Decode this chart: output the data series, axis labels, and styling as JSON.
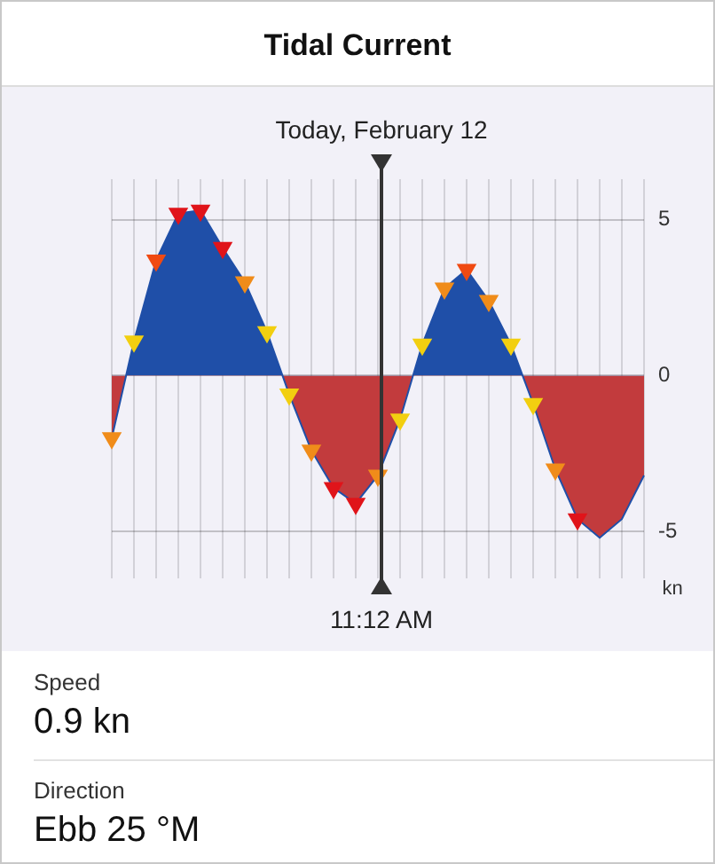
{
  "chart_data": {
    "type": "area",
    "title": "Tidal Current",
    "subtitle": "Today, February 12",
    "ylabel": "kn",
    "categories": [
      null,
      null,
      null,
      null,
      null,
      null,
      null,
      null,
      null,
      null,
      null,
      null,
      null,
      null,
      null,
      null,
      null,
      null,
      null,
      null,
      null,
      null,
      null,
      null,
      null
    ],
    "ylim": [
      -6.5,
      6.3
    ],
    "yticks": [
      -5,
      0,
      5
    ],
    "grid": true,
    "legend": false,
    "tick_labels": "y",
    "marker": "triangle",
    "series": [
      {
        "color": "#1f4fa8",
        "values": [
          -2.0,
          1.1,
          3.7,
          5.2,
          5.3,
          4.1,
          3.0,
          1.4,
          -0.6,
          -2.4,
          -3.6,
          -4.1,
          -3.2,
          -1.4,
          1.0,
          2.8,
          3.4,
          2.4,
          1.0,
          -0.9,
          -3.0,
          -4.6,
          -5.2,
          -4.6,
          -3.2
        ],
        "colors": [
          "#f08c1a",
          "#f2cf10",
          "#f04a12",
          "#e0141a",
          "#e0141a",
          "#e0141a",
          "#f08c1a",
          "#f2cf10",
          "#f2cf10",
          "#f08c1a",
          "#e0141a",
          "#e0141a",
          "#f08c1a",
          "#f2cf10",
          "#f2cf10",
          "#f08c1a",
          "#f04a12",
          "#f08c1a",
          "#f2cf10",
          "#f2cf10",
          "#f08c1a",
          "#e0141a",
          null,
          null,
          null
        ]
      }
    ],
    "annotations": [
      "11:12 AM",
      "Speed",
      "0.9 kn",
      "Direction",
      "Ebb 25 °M"
    ]
  }
}
